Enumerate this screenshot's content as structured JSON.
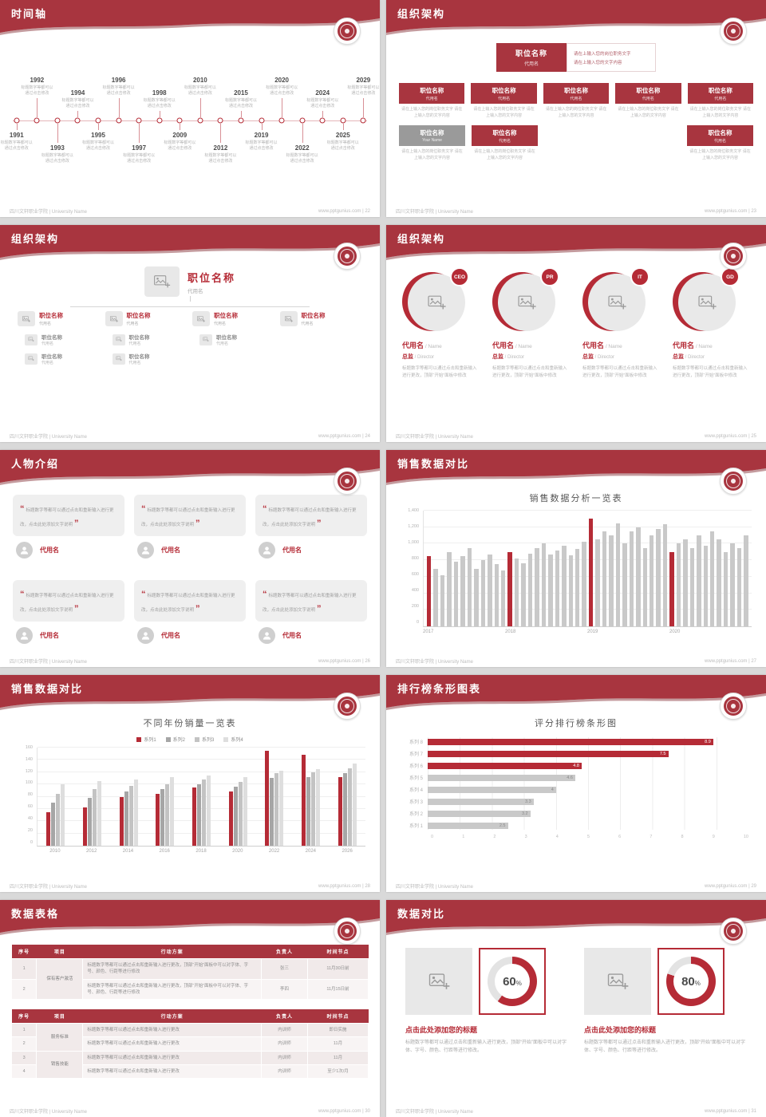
{
  "colors": {
    "banner": "#a8353f",
    "accent": "#b52b36",
    "bar_gray": "#c9c9c9"
  },
  "footer": {
    "school": "四川文轩职业学院 | University Name",
    "site": "www.pptgunius.com",
    "sep": " | "
  },
  "slides": {
    "timeline": {
      "title": "时间轴",
      "page": "22",
      "desc": "标题数字等都可以通过点击修改",
      "events": [
        {
          "year": "1991",
          "side": "bottom",
          "lvl": 1
        },
        {
          "year": "1992",
          "side": "top",
          "lvl": 1
        },
        {
          "year": "1993",
          "side": "bottom",
          "lvl": 2
        },
        {
          "year": "1994",
          "side": "top",
          "lvl": 2
        },
        {
          "year": "1995",
          "side": "bottom",
          "lvl": 1
        },
        {
          "year": "1996",
          "side": "top",
          "lvl": 1
        },
        {
          "year": "1997",
          "side": "bottom",
          "lvl": 2
        },
        {
          "year": "1998",
          "side": "top",
          "lvl": 2
        },
        {
          "year": "2009",
          "side": "bottom",
          "lvl": 1
        },
        {
          "year": "2010",
          "side": "top",
          "lvl": 1
        },
        {
          "year": "2012",
          "side": "bottom",
          "lvl": 2
        },
        {
          "year": "2015",
          "side": "top",
          "lvl": 2
        },
        {
          "year": "2019",
          "side": "bottom",
          "lvl": 1
        },
        {
          "year": "2020",
          "side": "top",
          "lvl": 1
        },
        {
          "year": "2022",
          "side": "bottom",
          "lvl": 2
        },
        {
          "year": "2024",
          "side": "top",
          "lvl": 2
        },
        {
          "year": "2025",
          "side": "bottom",
          "lvl": 1
        },
        {
          "year": "2029",
          "side": "top",
          "lvl": 1
        }
      ]
    },
    "org_boxes": {
      "title": "组织架构",
      "page": "23",
      "root": {
        "title": "职位名称",
        "sub": "代用名"
      },
      "root_note": [
        "请在上输入您的岗位职务文字",
        "请在上输入您的文字内容"
      ],
      "caption": "请在上输入您的岗位职务文字 请在上输入您的文字内容",
      "row1": [
        {
          "title": "职位名称",
          "sub": "代用名"
        },
        {
          "title": "职位名称",
          "sub": "代用名"
        },
        {
          "title": "职位名称",
          "sub": "代用名"
        },
        {
          "title": "职位名称",
          "sub": "代用名"
        },
        {
          "title": "职位名称",
          "sub": "代用名"
        }
      ],
      "row2": [
        {
          "title": "职位名称",
          "sub": "Your Name",
          "variant": "gray",
          "right": false
        },
        {
          "title": "职位名称",
          "sub": "代用名",
          "variant": "red",
          "right": false
        },
        {
          "title": "职位名称",
          "sub": "代用名",
          "variant": "red",
          "right": true
        }
      ]
    },
    "org_tree": {
      "title": "组织架构",
      "page": "24",
      "root": {
        "title": "职位名称",
        "sub": "代用名"
      },
      "branches": [
        {
          "title": "职位名称",
          "sub": "代用名",
          "children": [
            {
              "title": "职位名称",
              "sub": "代用名"
            },
            {
              "title": "职位名称",
              "sub": "代用名"
            }
          ]
        },
        {
          "title": "职位名称",
          "sub": "代用名",
          "children": [
            {
              "title": "职位名称",
              "sub": "代用名"
            },
            {
              "title": "职位名称",
              "sub": "代用名"
            }
          ]
        },
        {
          "title": "职位名称",
          "sub": "代用名",
          "children": [
            {
              "title": "职位名称",
              "sub": "代用名"
            }
          ]
        },
        {
          "title": "职位名称",
          "sub": "代用名",
          "children": []
        }
      ]
    },
    "profiles": {
      "title": "组织架构",
      "page": "25",
      "desc": "标题数字等都可以通过点击和重新输入进行更改，顶部“开始”面板中修改",
      "items": [
        {
          "badge": "CEO",
          "name": "代用名",
          "name_suffix": " / Name",
          "role": "总监",
          "role_suffix": " / Director"
        },
        {
          "badge": "PR",
          "name": "代用名",
          "name_suffix": " / Name",
          "role": "总监",
          "role_suffix": " / Director"
        },
        {
          "badge": "IT",
          "name": "代用名",
          "name_suffix": " / Name",
          "role": "总监",
          "role_suffix": " / Director"
        },
        {
          "badge": "GD",
          "name": "代用名",
          "name_suffix": " / Name",
          "role": "总监",
          "role_suffix": " / Director"
        }
      ]
    },
    "people": {
      "title": "人物介绍",
      "page": "26",
      "quote_open": "“",
      "quote_close": "”",
      "cards": [
        {
          "quote": "标题数字等都可以通过点击和重新输入进行更改，点击此处添加文字说明",
          "name": "代用名"
        },
        {
          "quote": "标题数字等都可以通过点击和重新输入进行更改，点击此处添加文字说明",
          "name": "代用名"
        },
        {
          "quote": "标题数字等都可以通过点击和重新输入进行更改，点击此处添加文字说明",
          "name": "代用名"
        },
        {
          "quote": "标题数字等都可以通过点击和重新输入进行更改，点击此处添加文字说明",
          "name": "代用名"
        },
        {
          "quote": "标题数字等都可以通过点击和重新输入进行更改，点击此处添加文字说明",
          "name": "代用名"
        },
        {
          "quote": "标题数字等都可以通过点击和重新输入进行更改，点击此处添加文字说明",
          "name": "代用名"
        }
      ]
    },
    "sales1": {
      "title": "销售数据对比",
      "page": "27"
    },
    "sales2": {
      "title": "销售数据对比",
      "page": "28"
    },
    "ranking": {
      "title": "排行榜条形图表",
      "page": "29"
    },
    "tables": {
      "title": "数据表格",
      "page": "30",
      "table1": {
        "headers": [
          "序号",
          "项目",
          "行动方案",
          "负责人",
          "时间节点"
        ],
        "rows": [
          [
            {
              "t": "1"
            },
            {
              "t": "保有客户激活",
              "rowspan": 2,
              "cls": "item"
            },
            {
              "t": "标题数字等都可以通过点击和重新输入进行更改，顶部“开始”面板中可以对字体、字号、颜色、行距等进行修改",
              "cls": "plan"
            },
            {
              "t": "张三"
            },
            {
              "t": "11月30日前"
            }
          ],
          [
            {
              "t": "2"
            },
            {
              "t": "标题数字等都可以通过点击和重新输入进行更改，顶部“开始”面板中可以对字体、字号、颜色、行距等进行修改",
              "cls": "plan"
            },
            {
              "t": "李四"
            },
            {
              "t": "11月15日前"
            }
          ]
        ]
      },
      "table2": {
        "headers": [
          "序号",
          "项目",
          "行动方案",
          "负责人",
          "时间节点"
        ],
        "rows": [
          [
            {
              "t": "1"
            },
            {
              "t": "服务标准",
              "rowspan": 2,
              "cls": "item"
            },
            {
              "t": "标题数字等都可以通过点击和重新输入进行更改",
              "cls": "plan"
            },
            {
              "t": "内训师"
            },
            {
              "t": "即日实施"
            }
          ],
          [
            {
              "t": "2"
            },
            {
              "t": "标题数字等都可以通过点击和重新输入进行更改",
              "cls": "plan"
            },
            {
              "t": "内训师"
            },
            {
              "t": "11月"
            }
          ],
          [
            {
              "t": "3"
            },
            {
              "t": "销售技能",
              "rowspan": 2,
              "cls": "item"
            },
            {
              "t": "标题数字等都可以通过点击和重新输入进行更改",
              "cls": "plan"
            },
            {
              "t": "内训师"
            },
            {
              "t": "11月"
            }
          ],
          [
            {
              "t": "4"
            },
            {
              "t": "标题数字等都可以通过点击和重新输入进行更改",
              "cls": "plan"
            },
            {
              "t": "内训师"
            },
            {
              "t": "至少1次/月"
            }
          ]
        ]
      }
    },
    "compare": {
      "title": "数据对比",
      "page": "31",
      "unit": "%",
      "panels": [
        {
          "percent": 60,
          "heading": "点击此处添加您的标题",
          "desc": "标题数字等都可以通过点击和重新输入进行更改，顶部“开始”面板中可以对字体、字号、颜色、行距等进行修改。"
        },
        {
          "percent": 80,
          "heading": "点击此处添加您的标题",
          "desc": "标题数字等都可以通过点击和重新输入进行更改，顶部“开始”面板中可以对字体、字号、颜色、行距等进行修改。"
        }
      ]
    }
  },
  "chart_data": [
    {
      "type": "bar",
      "title": "销售数据分析一览表",
      "x_groups": [
        "2017",
        "2018",
        "2019",
        "2020"
      ],
      "values": [
        850,
        700,
        620,
        900,
        780,
        850,
        950,
        700,
        800,
        870,
        750,
        680,
        900,
        820,
        760,
        880,
        950,
        1000,
        870,
        920,
        980,
        860,
        940,
        1020,
        1300,
        1050,
        1150,
        1100,
        1250,
        1000,
        1150,
        1200,
        950,
        1100,
        1180,
        1240,
        900,
        1000,
        1050,
        950,
        1100,
        980,
        1150,
        1050,
        900,
        1000,
        950,
        1100
      ],
      "highlight_indices": [
        0,
        12,
        24,
        36
      ],
      "ylim": [
        0,
        1400
      ],
      "yticks": [
        "0",
        "200",
        "400",
        "600",
        "800",
        "1,000",
        "1,200",
        "1,400"
      ],
      "grid": true,
      "legend": false
    },
    {
      "type": "grouped-bar",
      "title": "不同年份销量一览表",
      "categories": [
        "2010",
        "2012",
        "2014",
        "2016",
        "2018",
        "2020",
        "2022",
        "2024",
        "2026"
      ],
      "series": [
        {
          "name": "系列1",
          "color": "#b52b36",
          "values": [
            55,
            62,
            80,
            85,
            95,
            88,
            155,
            148,
            112
          ]
        },
        {
          "name": "系列2",
          "color": "#a6a6a6",
          "values": [
            70,
            78,
            88,
            92,
            100,
            96,
            110,
            112,
            118
          ]
        },
        {
          "name": "系列3",
          "color": "#c3c3c3",
          "values": [
            85,
            92,
            98,
            100,
            108,
            104,
            118,
            120,
            126
          ]
        },
        {
          "name": "系列4",
          "color": "#dedede",
          "values": [
            100,
            105,
            108,
            112,
            115,
            112,
            122,
            125,
            134
          ]
        }
      ],
      "ylim": [
        0,
        160
      ],
      "yticks": [
        "0",
        "20",
        "40",
        "60",
        "80",
        "100",
        "120",
        "140",
        "160"
      ],
      "grid": true,
      "legend": "top"
    },
    {
      "type": "hbar",
      "title": "评分排行榜条形图",
      "categories": [
        "系列 8",
        "系列 7",
        "系列 6",
        "系列 5",
        "系列 4",
        "系列 3",
        "系列 2",
        "系列 1"
      ],
      "values": [
        8.9,
        7.5,
        4.8,
        4.6,
        4,
        3.3,
        3.2,
        2.5
      ],
      "highlight_count": 3,
      "xlim": [
        0,
        10
      ],
      "xticks": [
        "0",
        "1",
        "2",
        "3",
        "4",
        "5",
        "6",
        "7",
        "8",
        "9",
        "10"
      ],
      "grid": true,
      "legend": false
    }
  ]
}
